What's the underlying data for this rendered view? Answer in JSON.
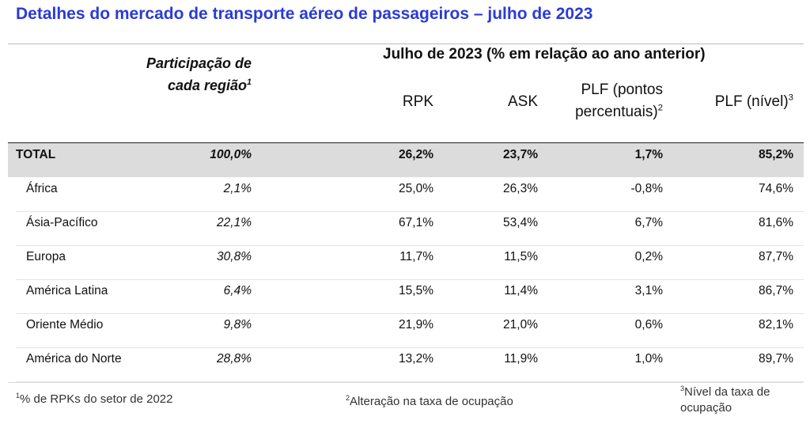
{
  "title": "Detalhes do mercado de transporte aéreo de passageiros – julho de 2023",
  "table": {
    "group_header": "Julho de 2023 (% em relação ao ano anterior)",
    "columns": [
      {
        "label": "Participação de cada região",
        "sup": "1"
      },
      {
        "label": "RPK"
      },
      {
        "label": "ASK"
      },
      {
        "label": "PLF (pontos percentuais)",
        "sup": "2"
      },
      {
        "label": "PLF (nível)",
        "sup": "3"
      }
    ],
    "rows": [
      [
        "TOTAL",
        "100,0%",
        "26,2%",
        "23,7%",
        "1,7%",
        "85,2%"
      ],
      [
        "África",
        "2,1%",
        "25,0%",
        "26,3%",
        "-0,8%",
        "74,6%"
      ],
      [
        "Ásia-Pacífico",
        "22,1%",
        "67,1%",
        "53,4%",
        "6,7%",
        "81,6%"
      ],
      [
        "Europa",
        "30,8%",
        "11,7%",
        "11,5%",
        "0,2%",
        "87,7%"
      ],
      [
        "América Latina",
        "6,4%",
        "15,5%",
        "11,4%",
        "3,1%",
        "86,7%"
      ],
      [
        "Oriente Médio",
        "9,8%",
        "21,9%",
        "21,0%",
        "0,6%",
        "82,1%"
      ],
      [
        "América do Norte",
        "28,8%",
        "13,2%",
        "11,9%",
        "1,0%",
        "89,7%"
      ]
    ]
  },
  "footnotes": [
    {
      "sup": "1",
      "text": "% de RPKs do setor de 2022"
    },
    {
      "sup": "2",
      "text": "Alteração na taxa de ocupação"
    },
    {
      "sup": "3",
      "text": "Nível da taxa de ocupação"
    }
  ]
}
